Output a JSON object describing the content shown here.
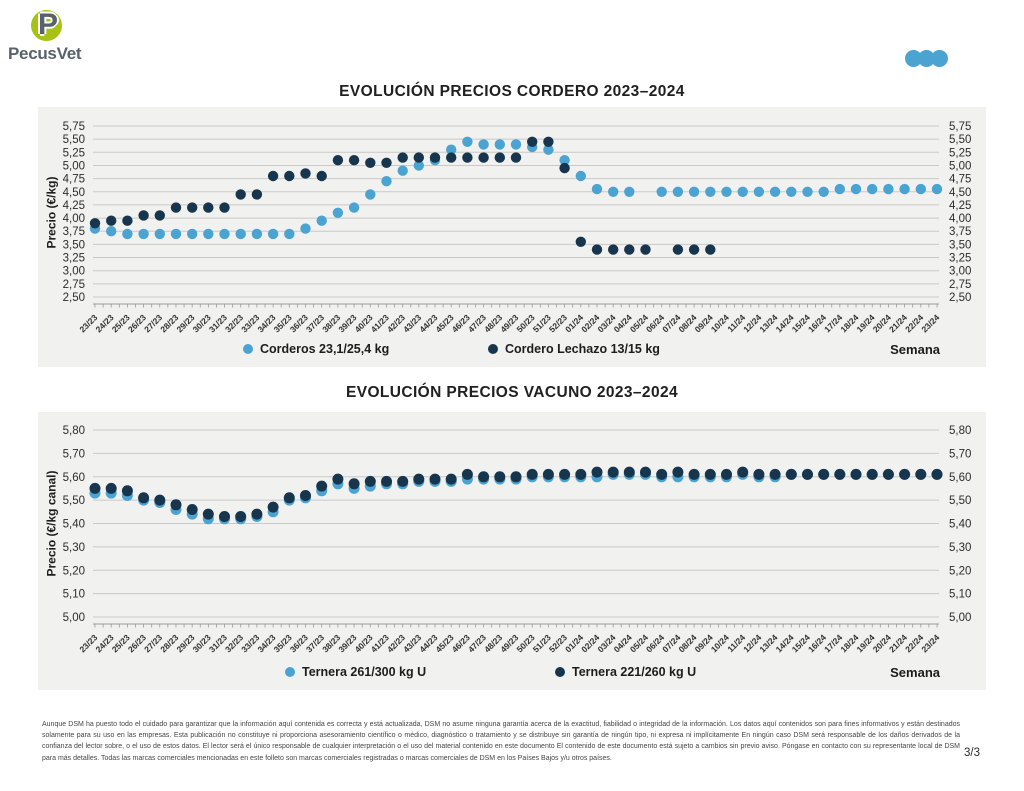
{
  "logo": {
    "brand": "PecusVet",
    "mark_letter": "P",
    "circle_color": "#A6C313",
    "text_color": "#57626D"
  },
  "header": {
    "dots_icon_color": "#4BA3D2"
  },
  "page": {
    "number": "3/3"
  },
  "disclaimer": "Aunque DSM ha puesto todo el cuidado para garantizar que la información aquí contenida es correcta y está actualizada, DSM no asume ninguna garantía acerca de la exactitud, fiabilidad o integridad de la información. Los datos aquí contenidos son para fines informativos y están destinados solamente para su uso en las empresas. Esta publicación no constituye ni proporciona asesoramiento científico o médico, diagnóstico o tratamiento y se distribuye sin garantía de ningún tipo, ni expresa ni implícitamente En ningún caso DSM será responsable de los daños derivados de la confianza del lector sobre, o el uso de estos datos. El lector será el único responsable de cualquier interpretación o el uso del material contenido en este documento El contenido de este documento está sujeto a cambios sin previo aviso. Póngase en contacto con su representante local de DSM para más detalles. Todas las marcas comerciales mencionadas en este folleto son marcas comerciales registradas o marcas comerciales de DSM en los Países Bajos y/u otros países.",
  "chart_data": [
    {
      "type": "scatter",
      "title": "EVOLUCIÓN PRECIOS CORDERO 2023–2024",
      "ylabel": "Precio (€/kg)",
      "xlabel": "Semana",
      "ylim": [
        2.5,
        5.75
      ],
      "ytick_step": 0.25,
      "ytick_labels": [
        "5,75",
        "5,50",
        "5,25",
        "5,00",
        "4,75",
        "4,50",
        "4,25",
        "4,00",
        "3,75",
        "3,50",
        "3,25",
        "3,00",
        "2,75",
        "2,50"
      ],
      "grid": true,
      "legend_position": "bottom",
      "categories": [
        "23/23",
        "24/23",
        "25/23",
        "26/23",
        "27/23",
        "28/23",
        "29/23",
        "30/23",
        "31/23",
        "32/23",
        "33/23",
        "34/23",
        "35/23",
        "36/23",
        "37/23",
        "38/23",
        "39/23",
        "40/23",
        "41/23",
        "42/23",
        "43/23",
        "44/23",
        "45/23",
        "46/23",
        "47/23",
        "48/23",
        "49/23",
        "50/23",
        "51/23",
        "52/23",
        "01/24",
        "02/24",
        "03/24",
        "04/24",
        "05/24",
        "06/24",
        "07/24",
        "08/24",
        "09/24",
        "10/24",
        "11/24",
        "12/24",
        "13/24",
        "14/24",
        "15/24",
        "16/24",
        "17/24",
        "18/24",
        "19/24",
        "20/24",
        "21/24",
        "22/24",
        "23/24"
      ],
      "series": [
        {
          "name": "Corderos 23,1/25,4 kg",
          "color": "#4BA3D2",
          "values": [
            3.8,
            3.75,
            3.7,
            3.7,
            3.7,
            3.7,
            3.7,
            3.7,
            3.7,
            3.7,
            3.7,
            3.7,
            3.7,
            3.8,
            3.95,
            4.1,
            4.2,
            4.45,
            4.7,
            4.9,
            5.0,
            5.1,
            5.3,
            5.45,
            5.4,
            5.4,
            5.4,
            5.35,
            5.3,
            5.1,
            4.8,
            4.55,
            4.5,
            4.5,
            null,
            4.5,
            4.5,
            4.5,
            4.5,
            4.5,
            4.5,
            4.5,
            4.5,
            4.5,
            4.5,
            4.5,
            4.55,
            4.55,
            4.55,
            4.55,
            4.55,
            4.55,
            4.55
          ]
        },
        {
          "name": "Cordero Lechazo 13/15 kg",
          "color": "#17364E",
          "values": [
            3.9,
            3.95,
            3.95,
            4.05,
            4.05,
            4.2,
            4.2,
            4.2,
            4.2,
            4.45,
            4.45,
            4.8,
            4.8,
            4.85,
            4.8,
            5.1,
            5.1,
            5.05,
            5.05,
            5.15,
            5.15,
            5.15,
            5.15,
            5.15,
            5.15,
            5.15,
            5.15,
            5.45,
            5.45,
            4.95,
            3.55,
            3.4,
            3.4,
            3.4,
            3.4,
            null,
            3.4,
            3.4,
            3.4,
            null,
            null,
            null,
            null,
            null,
            null,
            null,
            null,
            null,
            null,
            null,
            null,
            null,
            null
          ]
        }
      ]
    },
    {
      "type": "scatter",
      "title": "EVOLUCIÓN PRECIOS VACUNO 2023–2024",
      "ylabel": "Precio (€/kg canal)",
      "xlabel": "Semana",
      "ylim": [
        5.0,
        5.8
      ],
      "ytick_step": 0.1,
      "ytick_labels": [
        "5,80",
        "5,70",
        "5,60",
        "5,50",
        "5,40",
        "5,30",
        "5,20",
        "5,10",
        "5,00"
      ],
      "grid": true,
      "legend_position": "bottom",
      "categories": [
        "23/23",
        "24/23",
        "25/23",
        "26/23",
        "27/23",
        "28/23",
        "29/23",
        "30/23",
        "31/23",
        "32/23",
        "33/23",
        "34/23",
        "35/23",
        "36/23",
        "37/23",
        "38/23",
        "39/23",
        "40/23",
        "41/23",
        "42/23",
        "43/23",
        "44/23",
        "45/23",
        "46/23",
        "47/23",
        "48/23",
        "49/23",
        "50/23",
        "51/23",
        "52/23",
        "01/24",
        "02/24",
        "03/24",
        "04/24",
        "05/24",
        "06/24",
        "07/24",
        "08/24",
        "09/24",
        "10/24",
        "11/24",
        "12/24",
        "13/24",
        "14/24",
        "15/24",
        "16/24",
        "17/24",
        "18/24",
        "19/24",
        "20/24",
        "21/24",
        "22/24",
        "23/24"
      ],
      "series": [
        {
          "name": "Ternera 261/300 kg U",
          "color": "#4BA3D2",
          "values": [
            5.53,
            5.53,
            5.52,
            5.5,
            5.49,
            5.46,
            5.44,
            5.42,
            5.42,
            5.42,
            5.43,
            5.45,
            5.5,
            5.51,
            5.54,
            5.57,
            5.55,
            5.56,
            5.57,
            5.57,
            5.58,
            5.58,
            5.58,
            5.59,
            5.59,
            5.59,
            5.59,
            5.6,
            5.6,
            5.6,
            5.6,
            5.6,
            5.61,
            5.61,
            5.61,
            5.6,
            5.6,
            5.6,
            5.6,
            5.6,
            5.61,
            5.6,
            5.6,
            5.61,
            5.61,
            5.61,
            5.61,
            5.61,
            5.61,
            5.61,
            5.61,
            5.61,
            5.61
          ]
        },
        {
          "name": "Ternera 221/260 kg U",
          "color": "#17364E",
          "values": [
            5.55,
            5.55,
            5.54,
            5.51,
            5.5,
            5.48,
            5.46,
            5.44,
            5.43,
            5.43,
            5.44,
            5.47,
            5.51,
            5.52,
            5.56,
            5.59,
            5.57,
            5.58,
            5.58,
            5.58,
            5.59,
            5.59,
            5.59,
            5.61,
            5.6,
            5.6,
            5.6,
            5.61,
            5.61,
            5.61,
            5.61,
            5.62,
            5.62,
            5.62,
            5.62,
            5.61,
            5.62,
            5.61,
            5.61,
            5.61,
            5.62,
            5.61,
            5.61,
            5.61,
            5.61,
            5.61,
            5.61,
            5.61,
            5.61,
            5.61,
            5.61,
            5.61,
            5.61
          ]
        }
      ]
    }
  ]
}
